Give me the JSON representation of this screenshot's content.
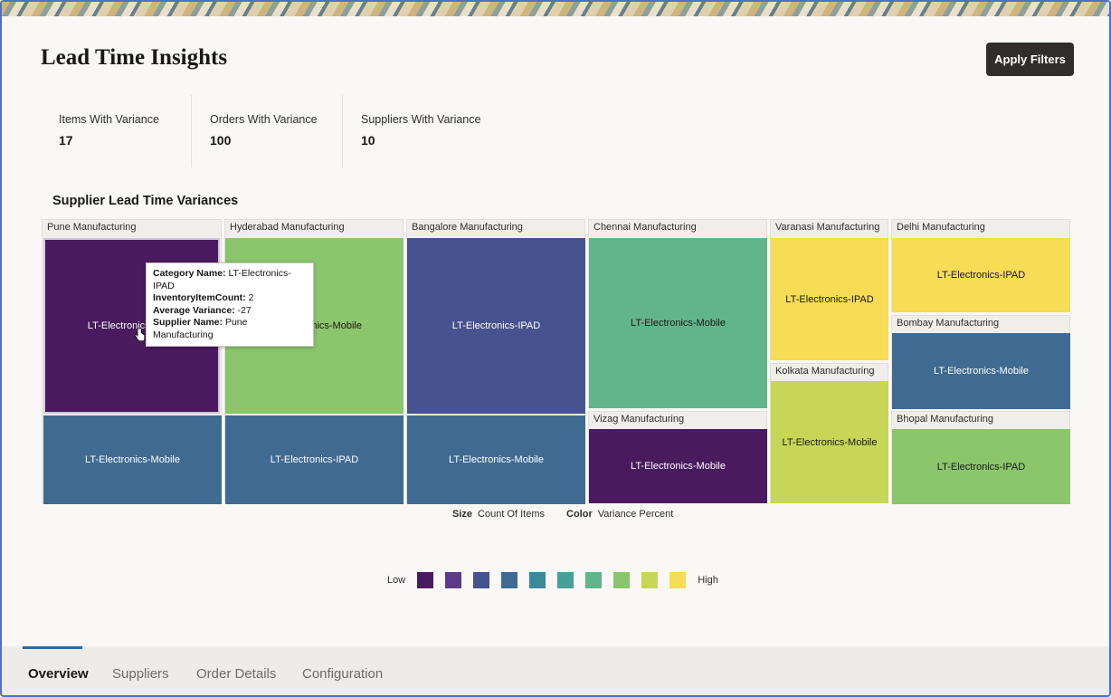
{
  "page": {
    "title": "Lead Time Insights",
    "apply_filters": "Apply Filters"
  },
  "metrics": [
    {
      "label": "Items With Variance",
      "value": "17"
    },
    {
      "label": "Orders With Variance",
      "value": "100"
    },
    {
      "label": "Suppliers With Variance",
      "value": "10"
    }
  ],
  "treemap": {
    "title": "Supplier Lead Time Variances",
    "groups": [
      {
        "name": "Pune Manufacturing",
        "cells": [
          {
            "category": "LT-Electronics-IPAD",
            "color": "#4a1a5e",
            "text": "#ffffff"
          },
          {
            "category": "LT-Electronics-Mobile",
            "color": "#3f6b93",
            "text": "#ffffff"
          }
        ]
      },
      {
        "name": "Hyderabad Manufacturing",
        "cells": [
          {
            "category": "LT-Electronics-Mobile",
            "color": "#8bc56c",
            "text": "#1a1816"
          },
          {
            "category": "LT-Electronics-IPAD",
            "color": "#3f6b93",
            "text": "#ffffff"
          }
        ]
      },
      {
        "name": "Bangalore Manufacturing",
        "cells": [
          {
            "category": "LT-Electronics-IPAD",
            "color": "#47538f",
            "text": "#ffffff"
          },
          {
            "category": "LT-Electronics-Mobile",
            "color": "#3f6b93",
            "text": "#ffffff"
          }
        ]
      },
      {
        "name": "Chennai Manufacturing",
        "cells": [
          {
            "category": "LT-Electronics-Mobile",
            "color": "#61b58a",
            "text": "#1a1816"
          }
        ]
      },
      {
        "name": "Vizag Manufacturing",
        "cells": [
          {
            "category": "LT-Electronics-Mobile",
            "color": "#4a1a5e",
            "text": "#ffffff"
          }
        ]
      },
      {
        "name": "Varanasi Manufacturing",
        "cells": [
          {
            "category": "LT-Electronics-IPAD",
            "color": "#f7dc56",
            "text": "#1a1816"
          }
        ]
      },
      {
        "name": "Kolkata Manufacturing",
        "cells": [
          {
            "category": "LT-Electronics-Mobile",
            "color": "#c7d656",
            "text": "#1a1816"
          }
        ]
      },
      {
        "name": "Delhi Manufacturing",
        "cells": [
          {
            "category": "LT-Electronics-IPAD",
            "color": "#f7dc56",
            "text": "#1a1816"
          }
        ]
      },
      {
        "name": "Bombay Manufacturing",
        "cells": [
          {
            "category": "LT-Electronics-Mobile",
            "color": "#3f6b93",
            "text": "#ffffff"
          }
        ]
      },
      {
        "name": "Bhopal Manufacturing",
        "cells": [
          {
            "category": "LT-Electronics-IPAD",
            "color": "#8bc56c",
            "text": "#1a1816"
          }
        ]
      }
    ],
    "size_key": "Size",
    "size_value": "Count Of Items",
    "color_key": "Color",
    "color_value": "Variance Percent"
  },
  "tooltip": {
    "category_label": "Category Name:",
    "category_value": "LT-Electronics-IPAD",
    "count_label": "InventoryItemCount:",
    "count_value": "2",
    "variance_label": "Average Variance:",
    "variance_value": "-27",
    "supplier_label": "Supplier Name:",
    "supplier_value": "Pune Manufacturing"
  },
  "legend": {
    "low": "Low",
    "high": "High",
    "colors": [
      "#4a1a5e",
      "#5b3a8a",
      "#47538f",
      "#3f6b93",
      "#3a8a99",
      "#45a196",
      "#61b58a",
      "#8bc56c",
      "#c7d656",
      "#f7dc56"
    ]
  },
  "tabs": [
    {
      "label": "Overview",
      "active": true
    },
    {
      "label": "Suppliers",
      "active": false
    },
    {
      "label": "Order Details",
      "active": false
    },
    {
      "label": "Configuration",
      "active": false
    }
  ]
}
